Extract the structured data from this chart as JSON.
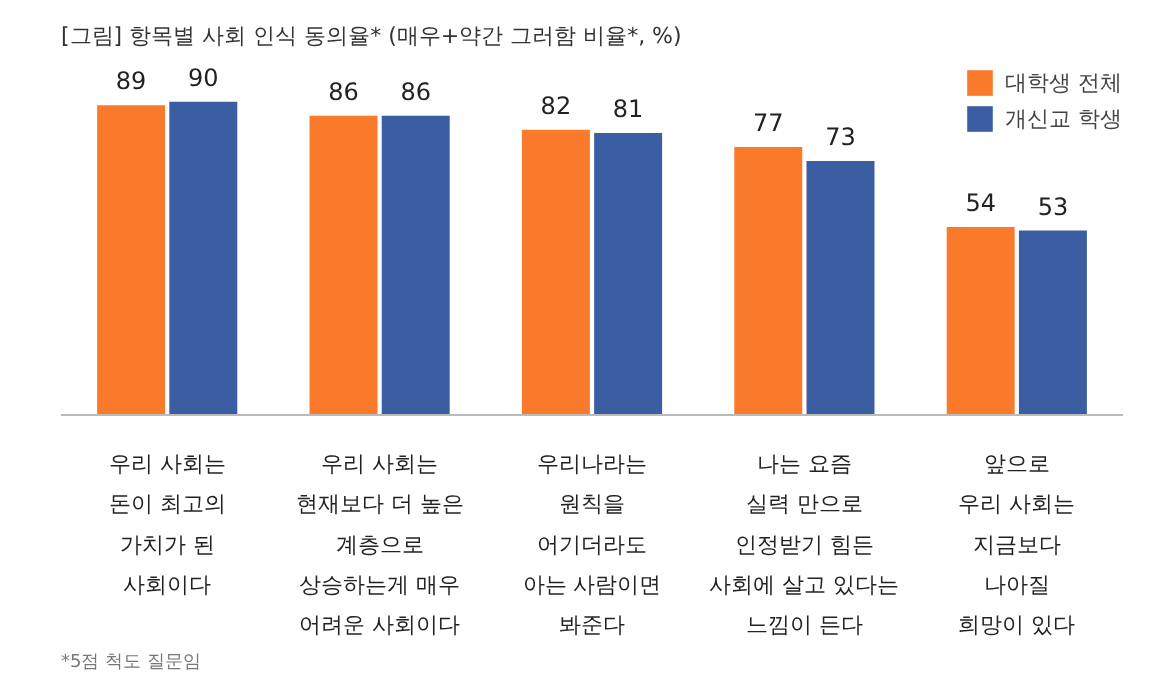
{
  "chart_data": {
    "type": "bar",
    "title": "[그림] 항목별 사회 인식 동의율* (매우+약간 그러함 비율*, %)",
    "categories": [
      "우리 사회는\n돈이 최고의\n가치가 된\n사회이다",
      "우리 사회는\n현재보다 더 높은\n계층으로\n상승하는게 매우\n어려운 사회이다",
      "우리나라는\n원칙을\n어기더라도\n아는 사람이면\n봐준다",
      "나는 요즘\n실력 만으로\n인정받기 힘든\n사회에 살고 있다는\n느낌이 든다",
      "앞으로\n우리 사회는\n지금보다\n나아질\n희망이 있다"
    ],
    "series": [
      {
        "name": "대학생 전체",
        "color": "#fa7a2c",
        "values": [
          89,
          86,
          82,
          77,
          54
        ]
      },
      {
        "name": "개신교 학생",
        "color": "#3b5ea3",
        "values": [
          90,
          86,
          81,
          73,
          53
        ]
      }
    ],
    "ylim": [
      0,
      100
    ],
    "tick_labels": "x",
    "data_labels": true,
    "grid": false,
    "legend": "top right",
    "annotations": [
      "*5점 척도 질문임"
    ]
  }
}
